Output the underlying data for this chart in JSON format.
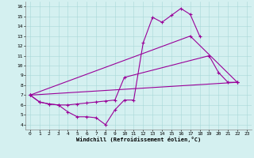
{
  "xlabel": "Windchill (Refroidissement éolien,°C)",
  "bg_color": "#d4f0f0",
  "line_color": "#990099",
  "xlim": [
    -0.5,
    23.5
  ],
  "ylim": [
    3.5,
    16.5
  ],
  "xticks": [
    0,
    1,
    2,
    3,
    4,
    5,
    6,
    7,
    8,
    9,
    10,
    11,
    12,
    13,
    14,
    15,
    16,
    17,
    18,
    19,
    20,
    21,
    22,
    23
  ],
  "yticks": [
    4,
    5,
    6,
    7,
    8,
    9,
    10,
    11,
    12,
    13,
    14,
    15,
    16
  ],
  "line1_x": [
    0,
    1,
    2,
    3,
    4,
    5,
    6,
    7,
    8,
    9,
    10,
    11,
    12,
    13,
    14,
    15,
    16,
    17,
    18
  ],
  "line1_y": [
    7.0,
    6.3,
    6.1,
    6.0,
    5.3,
    4.8,
    4.8,
    4.7,
    4.0,
    5.5,
    6.5,
    6.5,
    12.3,
    14.9,
    14.4,
    15.1,
    15.8,
    15.2,
    13.0
  ],
  "line2_x": [
    0,
    1,
    2,
    3,
    4,
    5,
    6,
    7,
    8,
    9,
    10,
    19,
    20,
    21,
    22
  ],
  "line2_y": [
    7.0,
    6.3,
    6.1,
    6.0,
    6.0,
    6.1,
    6.2,
    6.3,
    6.4,
    6.5,
    8.8,
    11.0,
    9.3,
    8.3,
    8.3
  ],
  "line3_x": [
    0,
    22
  ],
  "line3_y": [
    7.0,
    8.3
  ],
  "line4_x": [
    0,
    17,
    22
  ],
  "line4_y": [
    7.0,
    13.0,
    8.3
  ]
}
